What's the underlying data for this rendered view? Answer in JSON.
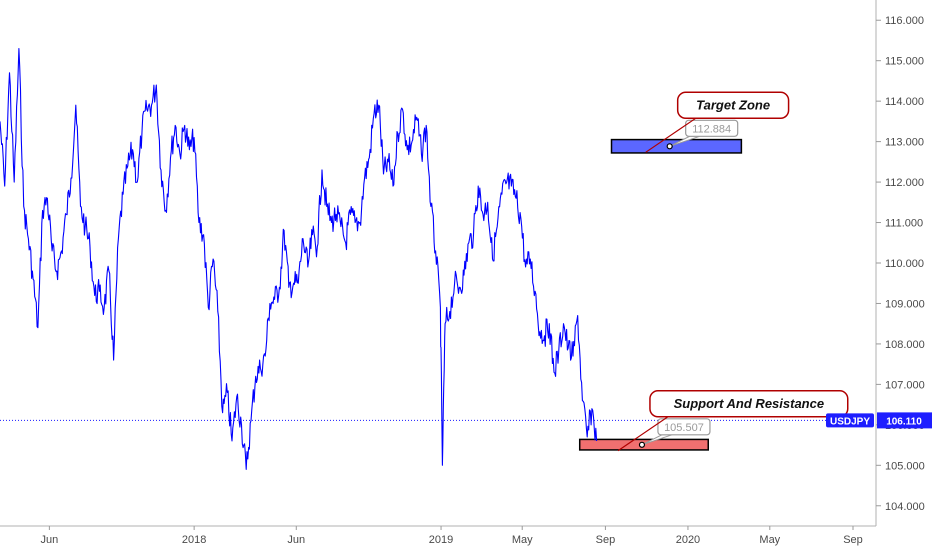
{
  "chart_data": {
    "type": "line",
    "symbol": "USDJPY",
    "last_price": 106.11,
    "last_price_label": "106.110",
    "ylim": [
      103.5,
      116.5
    ],
    "y_ticks": [
      104,
      105,
      106,
      107,
      108,
      109,
      110,
      111,
      112,
      113,
      114,
      115,
      116
    ],
    "y_tick_labels": [
      "104.000",
      "105.000",
      "106.000",
      "107.000",
      "108.000",
      "109.000",
      "110.000",
      "111.000",
      "112.000",
      "113.000",
      "114.000",
      "115.000",
      "116.000"
    ],
    "x_range": [
      "2017-03-20",
      "2020-10-05"
    ],
    "x_ticks": [
      {
        "date": "2017-06-01",
        "label": "Jun"
      },
      {
        "date": "2018-01-01",
        "label": "2018"
      },
      {
        "date": "2018-06-01",
        "label": "Jun"
      },
      {
        "date": "2019-01-01",
        "label": "2019"
      },
      {
        "date": "2019-05-01",
        "label": "May"
      },
      {
        "date": "2019-09-01",
        "label": "Sep"
      },
      {
        "date": "2020-01-01",
        "label": "2020"
      },
      {
        "date": "2020-05-01",
        "label": "May"
      },
      {
        "date": "2020-09-01",
        "label": "Sep"
      }
    ],
    "series": [
      {
        "color": "#0000ff",
        "points": [
          [
            "2017-03-20",
            113.5
          ],
          [
            "2017-03-27",
            111.9
          ],
          [
            "2017-04-03",
            114.7
          ],
          [
            "2017-04-10",
            112.0
          ],
          [
            "2017-04-17",
            115.3
          ],
          [
            "2017-04-24",
            111.4
          ],
          [
            "2017-05-01",
            110.6
          ],
          [
            "2017-05-08",
            109.6
          ],
          [
            "2017-05-15",
            108.4
          ],
          [
            "2017-05-22",
            111.3
          ],
          [
            "2017-05-29",
            111.6
          ],
          [
            "2017-06-05",
            110.3
          ],
          [
            "2017-06-12",
            109.8
          ],
          [
            "2017-06-19",
            110.3
          ],
          [
            "2017-06-26",
            111.2
          ],
          [
            "2017-07-03",
            112.1
          ],
          [
            "2017-07-10",
            113.9
          ],
          [
            "2017-07-17",
            111.4
          ],
          [
            "2017-07-24",
            110.9
          ],
          [
            "2017-07-31",
            110.4
          ],
          [
            "2017-08-07",
            109.2
          ],
          [
            "2017-08-14",
            109.3
          ],
          [
            "2017-08-21",
            108.9
          ],
          [
            "2017-08-28",
            109.8
          ],
          [
            "2017-09-04",
            107.6
          ],
          [
            "2017-09-11",
            110.6
          ],
          [
            "2017-09-18",
            111.7
          ],
          [
            "2017-09-25",
            112.4
          ],
          [
            "2017-10-02",
            112.8
          ],
          [
            "2017-10-09",
            112.0
          ],
          [
            "2017-10-16",
            113.3
          ],
          [
            "2017-10-23",
            113.8
          ],
          [
            "2017-10-30",
            113.9
          ],
          [
            "2017-11-06",
            114.4
          ],
          [
            "2017-11-13",
            112.3
          ],
          [
            "2017-11-20",
            111.3
          ],
          [
            "2017-11-27",
            112.6
          ],
          [
            "2017-12-04",
            113.4
          ],
          [
            "2017-12-11",
            112.7
          ],
          [
            "2017-12-18",
            113.4
          ],
          [
            "2017-12-25",
            112.8
          ],
          [
            "2018-01-01",
            113.1
          ],
          [
            "2018-01-08",
            111.0
          ],
          [
            "2018-01-15",
            110.7
          ],
          [
            "2018-01-22",
            108.9
          ],
          [
            "2018-01-29",
            110.1
          ],
          [
            "2018-02-05",
            108.8
          ],
          [
            "2018-02-12",
            106.3
          ],
          [
            "2018-02-19",
            106.8
          ],
          [
            "2018-02-26",
            105.6
          ],
          [
            "2018-03-05",
            106.7
          ],
          [
            "2018-03-12",
            106.0
          ],
          [
            "2018-03-19",
            104.9
          ],
          [
            "2018-03-26",
            106.1
          ],
          [
            "2018-04-02",
            107.2
          ],
          [
            "2018-04-09",
            107.4
          ],
          [
            "2018-04-16",
            107.7
          ],
          [
            "2018-04-23",
            109.0
          ],
          [
            "2018-04-30",
            109.1
          ],
          [
            "2018-05-07",
            109.4
          ],
          [
            "2018-05-14",
            110.8
          ],
          [
            "2018-05-21",
            109.4
          ],
          [
            "2018-05-28",
            109.5
          ],
          [
            "2018-06-04",
            109.5
          ],
          [
            "2018-06-11",
            110.6
          ],
          [
            "2018-06-18",
            109.9
          ],
          [
            "2018-06-25",
            110.7
          ],
          [
            "2018-07-02",
            110.4
          ],
          [
            "2018-07-09",
            112.3
          ],
          [
            "2018-07-16",
            111.4
          ],
          [
            "2018-07-23",
            111.0
          ],
          [
            "2018-07-30",
            111.2
          ],
          [
            "2018-08-06",
            110.9
          ],
          [
            "2018-08-13",
            110.5
          ],
          [
            "2018-08-20",
            111.2
          ],
          [
            "2018-08-27",
            111.0
          ],
          [
            "2018-09-03",
            111.0
          ],
          [
            "2018-09-10",
            112.1
          ],
          [
            "2018-09-17",
            112.6
          ],
          [
            "2018-09-24",
            113.7
          ],
          [
            "2018-10-01",
            113.9
          ],
          [
            "2018-10-08",
            112.2
          ],
          [
            "2018-10-15",
            112.5
          ],
          [
            "2018-10-22",
            111.9
          ],
          [
            "2018-10-29",
            113.2
          ],
          [
            "2018-11-05",
            113.8
          ],
          [
            "2018-11-12",
            112.8
          ],
          [
            "2018-11-19",
            113.0
          ],
          [
            "2018-11-26",
            113.6
          ],
          [
            "2018-12-03",
            112.7
          ],
          [
            "2018-12-10",
            113.4
          ],
          [
            "2018-12-17",
            111.4
          ],
          [
            "2018-12-24",
            110.3
          ],
          [
            "2018-12-31",
            108.9
          ],
          [
            "2019-01-03",
            105.0
          ],
          [
            "2019-01-07",
            108.5
          ],
          [
            "2019-01-14",
            108.8
          ],
          [
            "2019-01-21",
            109.5
          ],
          [
            "2019-01-28",
            109.4
          ],
          [
            "2019-02-04",
            109.7
          ],
          [
            "2019-02-11",
            110.5
          ],
          [
            "2019-02-18",
            110.7
          ],
          [
            "2019-02-25",
            111.9
          ],
          [
            "2019-03-04",
            111.2
          ],
          [
            "2019-03-11",
            111.5
          ],
          [
            "2019-03-18",
            110.1
          ],
          [
            "2019-03-25",
            110.9
          ],
          [
            "2019-04-01",
            111.7
          ],
          [
            "2019-04-08",
            112.0
          ],
          [
            "2019-04-15",
            111.9
          ],
          [
            "2019-04-22",
            111.6
          ],
          [
            "2019-04-29",
            111.1
          ],
          [
            "2019-05-06",
            109.9
          ],
          [
            "2019-05-13",
            110.1
          ],
          [
            "2019-05-20",
            109.3
          ],
          [
            "2019-05-27",
            108.3
          ],
          [
            "2019-06-03",
            108.2
          ],
          [
            "2019-06-10",
            108.5
          ],
          [
            "2019-06-17",
            107.3
          ],
          [
            "2019-06-24",
            107.8
          ],
          [
            "2019-07-01",
            108.5
          ],
          [
            "2019-07-08",
            107.9
          ],
          [
            "2019-07-15",
            107.7
          ],
          [
            "2019-07-22",
            108.7
          ],
          [
            "2019-07-29",
            106.6
          ],
          [
            "2019-08-05",
            105.7
          ],
          [
            "2019-08-12",
            106.4
          ],
          [
            "2019-08-19",
            105.6
          ]
        ]
      }
    ],
    "annotations": [
      {
        "label": "Target Zone",
        "price": 112.884,
        "price_label": "112.884",
        "zone_start": "2019-09-10",
        "zone_end": "2020-03-20",
        "zone_low": 112.72,
        "zone_high": 113.05,
        "zone_color": "#5b67ff",
        "anchor_date": "2019-12-05"
      },
      {
        "label": "Support And Resistance",
        "price": 105.507,
        "price_label": "105.507",
        "zone_start": "2019-07-25",
        "zone_end": "2020-01-31",
        "zone_low": 105.38,
        "zone_high": 105.64,
        "zone_color": "#f07070",
        "anchor_date": "2019-10-25"
      }
    ],
    "grid": false,
    "legend": "none"
  }
}
